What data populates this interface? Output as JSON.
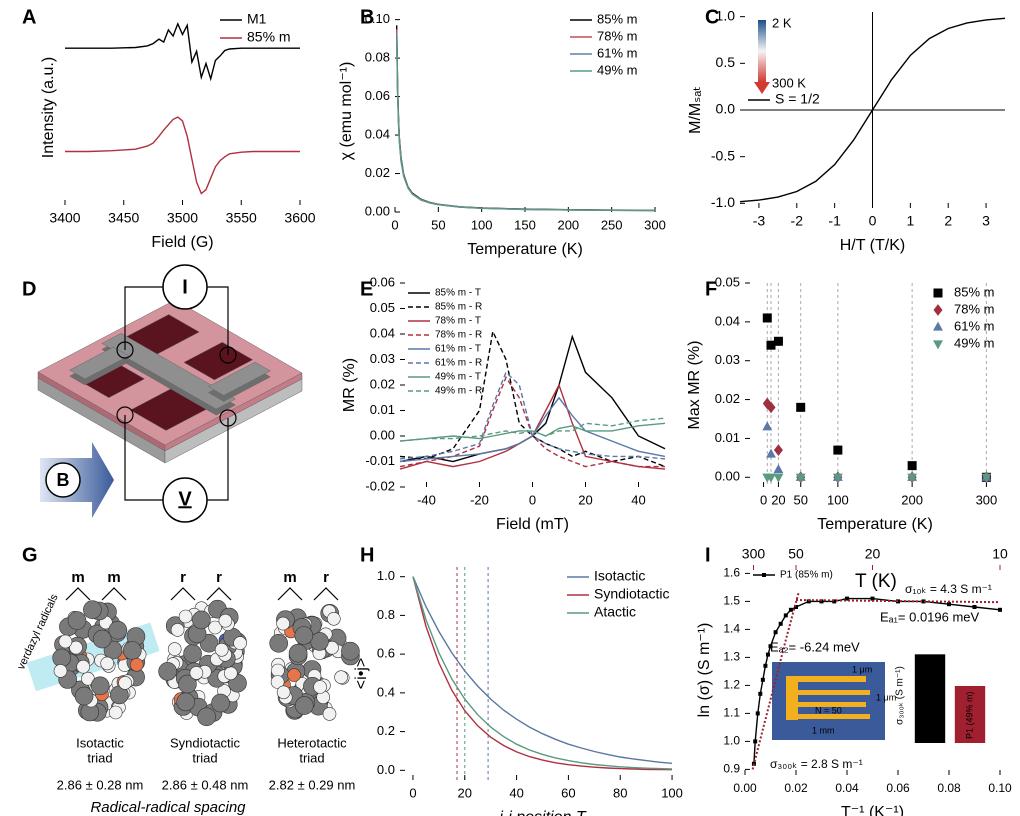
{
  "chart_data": [
    {
      "panel": "A",
      "type": "line",
      "xlabel": "Field (G)",
      "ylabel": "Intensity (a.u.)",
      "x": [
        3400,
        3420,
        3440,
        3460,
        3470,
        3475,
        3480,
        3484,
        3488,
        3492,
        3496,
        3500,
        3504,
        3508,
        3512,
        3516,
        3520,
        3524,
        3528,
        3532,
        3536,
        3540,
        3550,
        3560,
        3580,
        3600
      ],
      "series": [
        {
          "name": "M1",
          "color": "#000000",
          "values": [
            0.6,
            0.6,
            0.6,
            0.61,
            0.63,
            0.66,
            0.72,
            0.68,
            0.84,
            0.76,
            0.92,
            0.78,
            0.9,
            0.42,
            0.56,
            0.22,
            0.4,
            0.2,
            0.44,
            0.5,
            0.57,
            0.59,
            0.6,
            0.6,
            0.6,
            0.6
          ]
        },
        {
          "name": "85% m",
          "color": "#b03040",
          "values": [
            -0.75,
            -0.75,
            -0.74,
            -0.72,
            -0.68,
            -0.64,
            -0.55,
            -0.47,
            -0.4,
            -0.33,
            -0.3,
            -0.35,
            -0.55,
            -0.85,
            -1.15,
            -1.3,
            -1.25,
            -1.1,
            -0.95,
            -0.87,
            -0.82,
            -0.78,
            -0.76,
            -0.75,
            -0.75,
            -0.75
          ]
        }
      ],
      "xlim": [
        3400,
        3600
      ],
      "xticks": [
        3400,
        3450,
        3500,
        3550,
        3600
      ],
      "ylim": [
        -1.45,
        1.1
      ],
      "legend": "upper right"
    },
    {
      "panel": "B",
      "type": "line",
      "xlabel": "Temperature (K)",
      "ylabel": "χ (emu mol⁻¹)",
      "x": [
        2,
        3,
        4,
        5,
        7,
        10,
        15,
        20,
        30,
        40,
        50,
        75,
        100,
        150,
        200,
        250,
        300
      ],
      "series": [
        {
          "name": "85% m",
          "color": "#000000",
          "values": [
            0.097,
            0.065,
            0.049,
            0.039,
            0.028,
            0.0195,
            0.013,
            0.0098,
            0.0066,
            0.005,
            0.004,
            0.0027,
            0.0021,
            0.0015,
            0.0012,
            0.001,
            0.0009
          ]
        },
        {
          "name": "78% m",
          "color": "#c0505a",
          "values": [
            0.095,
            0.064,
            0.048,
            0.038,
            0.027,
            0.019,
            0.0127,
            0.0095,
            0.0064,
            0.0049,
            0.0039,
            0.0026,
            0.002,
            0.0014,
            0.0011,
            0.0009,
            0.0008
          ]
        },
        {
          "name": "61% m",
          "color": "#6080a8",
          "values": [
            0.093,
            0.062,
            0.047,
            0.037,
            0.027,
            0.0188,
            0.0126,
            0.0094,
            0.0063,
            0.0048,
            0.0039,
            0.0026,
            0.002,
            0.0014,
            0.0011,
            0.0009,
            0.0008
          ]
        },
        {
          "name": "49% m",
          "color": "#5a9a88",
          "values": [
            0.09,
            0.061,
            0.046,
            0.037,
            0.026,
            0.0185,
            0.0124,
            0.0093,
            0.0062,
            0.0047,
            0.0038,
            0.0025,
            0.0019,
            0.0013,
            0.0011,
            0.0009,
            0.0008
          ]
        }
      ],
      "xlim": [
        0,
        300
      ],
      "xticks": [
        0,
        50,
        100,
        150,
        200,
        250,
        300
      ],
      "ylim": [
        0,
        0.105
      ],
      "yticks": [
        {
          "value": 0,
          "label": "0.00"
        },
        0.02,
        0.04,
        0.06,
        0.08,
        {
          "value": 0.1,
          "label": "0.10"
        }
      ],
      "legend": "upper right"
    },
    {
      "panel": "C",
      "type": "line",
      "xlabel": "H/T (T/K)",
      "ylabel": "M/Mₛₐₜ",
      "x": [
        -3.5,
        -3,
        -2.5,
        -2,
        -1.5,
        -1,
        -0.5,
        0,
        0.5,
        1,
        1.5,
        2,
        2.5,
        3,
        3.5
      ],
      "series": [
        {
          "name": "S = 1/2",
          "color": "#000000",
          "values": [
            -0.982,
            -0.965,
            -0.933,
            -0.873,
            -0.765,
            -0.586,
            -0.323,
            0,
            0.323,
            0.586,
            0.765,
            0.873,
            0.933,
            0.965,
            0.982
          ]
        }
      ],
      "xlim": [
        -3.5,
        3.5
      ],
      "xticks": [
        -3,
        -2,
        -1,
        0,
        1,
        2,
        3
      ],
      "ylim": [
        -1.05,
        1.05
      ],
      "yticks": [
        {
          "value": -1,
          "label": "-1.0"
        },
        -0.5,
        {
          "value": 0,
          "label": "0.0"
        },
        0.5,
        {
          "value": 1,
          "label": "1.0"
        }
      ],
      "zero_lines": true,
      "legend": "upper left",
      "annotations": [
        "2 K",
        "300 K"
      ]
    },
    {
      "panel": "E",
      "type": "line",
      "xlabel": "Field (mT)",
      "ylabel": "MR (%)",
      "x": [
        -50,
        -40,
        -30,
        -20,
        -15,
        -10,
        -5,
        0,
        5,
        10,
        15,
        20,
        30,
        40,
        50
      ],
      "series": [
        {
          "name": "85% m - T",
          "color": "#000000",
          "style": "solid",
          "values": [
            -0.01,
            -0.008,
            -0.01,
            -0.007,
            -0.006,
            -0.005,
            -0.003,
            0,
            0.005,
            0.02,
            0.039,
            0.025,
            0.015,
            0,
            -0.005
          ]
        },
        {
          "name": "85% m - R",
          "color": "#000000",
          "style": "dashed",
          "values": [
            -0.008,
            -0.009,
            -0.005,
            0.01,
            0.041,
            0.03,
            0.005,
            0,
            -0.003,
            -0.005,
            -0.008,
            -0.006,
            -0.01,
            -0.008,
            -0.012
          ]
        },
        {
          "name": "78% m - T",
          "color": "#b03040",
          "style": "solid",
          "values": [
            -0.013,
            -0.01,
            -0.012,
            -0.01,
            -0.008,
            -0.006,
            -0.003,
            0,
            0.01,
            0.02,
            0.005,
            -0.008,
            -0.01,
            -0.012,
            -0.013
          ]
        },
        {
          "name": "78% m - R",
          "color": "#b03040",
          "style": "dashed",
          "values": [
            -0.012,
            -0.01,
            -0.008,
            -0.004,
            0.01,
            0.023,
            0.015,
            0,
            -0.005,
            -0.008,
            -0.01,
            -0.012,
            -0.01,
            -0.012,
            -0.012
          ]
        },
        {
          "name": "61% m - T",
          "color": "#5a78a8",
          "style": "solid",
          "values": [
            -0.01,
            -0.009,
            -0.008,
            -0.007,
            -0.006,
            -0.005,
            -0.003,
            0,
            0.008,
            0.015,
            0.008,
            0.002,
            -0.002,
            -0.006,
            -0.008
          ]
        },
        {
          "name": "61% m - R",
          "color": "#5a78a8",
          "style": "dashed",
          "values": [
            -0.009,
            -0.008,
            -0.006,
            -0.003,
            0.012,
            0.025,
            0.02,
            0,
            -0.003,
            -0.005,
            -0.006,
            -0.007,
            -0.008,
            -0.008,
            -0.009
          ]
        },
        {
          "name": "49% m - T",
          "color": "#5a9a80",
          "style": "solid",
          "values": [
            -0.002,
            -0.001,
            0,
            -0.001,
            0,
            0.001,
            0.002,
            0.002,
            0,
            0.003,
            0.004,
            0.002,
            0.002,
            0.004,
            0.005
          ]
        },
        {
          "name": "49% m - R",
          "color": "#5a9a80",
          "style": "dashed",
          "values": [
            -0.002,
            -0.001,
            -0.001,
            0,
            0.001,
            0.002,
            0.001,
            0.002,
            0,
            0.002,
            0.002,
            0.005,
            0.004,
            0.006,
            0.007
          ]
        }
      ],
      "xlim": [
        -50,
        50
      ],
      "xticks": [
        -40,
        -20,
        0,
        20,
        40
      ],
      "ylim": [
        -0.02,
        0.06
      ],
      "yticks": [
        -0.02,
        -0.01,
        {
          "value": 0,
          "label": "0.00"
        },
        0.01,
        0.02,
        0.03,
        0.04,
        0.05,
        0.06
      ],
      "legend": "upper left"
    },
    {
      "panel": "F",
      "type": "scatter",
      "xlabel": "Temperature (K)",
      "ylabel": "Max MR (%)",
      "x": [
        5,
        10,
        20,
        50,
        100,
        200,
        300
      ],
      "series": [
        {
          "name": "85% m",
          "color": "#000000",
          "marker": "square",
          "values": [
            0.041,
            0.034,
            0.035,
            0.018,
            0.007,
            0.003,
            0
          ]
        },
        {
          "name": "78% m",
          "color": "#a03040",
          "marker": "diamond",
          "values": [
            0.019,
            0.018,
            0.007,
            0,
            0,
            0,
            0
          ]
        },
        {
          "name": "61% m",
          "color": "#5a78a8",
          "marker": "triangle",
          "values": [
            0.013,
            0.006,
            0.002,
            0,
            0,
            0,
            0
          ]
        },
        {
          "name": "49% m",
          "color": "#5a9a80",
          "marker": "triangle-down",
          "values": [
            0,
            0,
            0,
            0,
            0,
            0,
            0
          ]
        }
      ],
      "guides": [
        5,
        10,
        20,
        50,
        100,
        200,
        300
      ],
      "xlim": [
        -25,
        325
      ],
      "xticks": [
        0,
        20,
        50,
        100,
        200,
        300
      ],
      "ylim": [
        -0.0025,
        0.05
      ],
      "yticks": [
        {
          "value": 0,
          "label": "0.00"
        },
        0.01,
        0.02,
        0.03,
        0.04,
        0.05
      ],
      "legend": "upper right"
    },
    {
      "panel": "H",
      "type": "line",
      "xlabel": "i-j position T",
      "ylabel": "<i•j>",
      "x": [
        0,
        5,
        10,
        15,
        20,
        25,
        30,
        35,
        40,
        45,
        50,
        55,
        60,
        65,
        70,
        75,
        80,
        85,
        90,
        95,
        100
      ],
      "series": [
        {
          "name": "Isotactic",
          "color": "#5a78a0",
          "values": [
            1,
            0.846,
            0.717,
            0.607,
            0.513,
            0.435,
            0.368,
            0.311,
            0.264,
            0.223,
            0.189,
            0.16,
            0.135,
            0.115,
            0.097,
            0.082,
            0.069,
            0.059,
            0.05,
            0.042,
            0.036
          ]
        },
        {
          "name": "Syndiotactic",
          "color": "#b03040",
          "values": [
            1,
            0.745,
            0.555,
            0.414,
            0.308,
            0.23,
            0.171,
            0.128,
            0.095,
            0.071,
            0.053,
            0.039,
            0.029,
            0.022,
            0.016,
            0.012,
            0.009,
            0.007,
            0.005,
            0.004,
            0.003
          ]
        },
        {
          "name": "Atactic",
          "color": "#5a9a80",
          "values": [
            1,
            0.779,
            0.607,
            0.472,
            0.368,
            0.287,
            0.223,
            0.174,
            0.135,
            0.105,
            0.082,
            0.064,
            0.05,
            0.039,
            0.03,
            0.024,
            0.018,
            0.014,
            0.011,
            0.009,
            0.007
          ]
        }
      ],
      "guides": [
        17,
        20,
        29
      ],
      "guide_colors": [
        "#b03040",
        "#5a9a80",
        "#5a78a0"
      ],
      "xlim": [
        -5,
        105
      ],
      "xticks": [
        0,
        20,
        40,
        60,
        80,
        100
      ],
      "ylim": [
        -0.05,
        1.05
      ],
      "yticks": [
        {
          "value": 0,
          "label": "0.0"
        },
        0.2,
        0.4,
        0.6,
        0.8,
        {
          "value": 1,
          "label": "1.0"
        }
      ],
      "legend": "upper right"
    },
    {
      "panel": "I",
      "type": "scatter",
      "xlabel": "T⁻¹ (K⁻¹)",
      "ylabel": "ln (σ) (S m⁻¹)",
      "x": [
        0.0035,
        0.004,
        0.005,
        0.006,
        0.007,
        0.008,
        0.009,
        0.01,
        0.012,
        0.014,
        0.016,
        0.018,
        0.02,
        0.025,
        0.03,
        0.035,
        0.04,
        0.05,
        0.06,
        0.07,
        0.08,
        0.09,
        0.1
      ],
      "series": [
        {
          "name": "P1 (85% m)",
          "color": "#000000",
          "marker": "square",
          "mode": "line+markers",
          "values": [
            0.92,
            1.0,
            1.1,
            1.17,
            1.22,
            1.27,
            1.31,
            1.34,
            1.39,
            1.42,
            1.45,
            1.47,
            1.48,
            1.5,
            1.5,
            1.5,
            1.51,
            1.51,
            1.5,
            1.5,
            1.49,
            1.48,
            1.47
          ]
        },
        {
          "color": "#9a2030",
          "mode": "line",
          "style": "dotted",
          "x": [
            0.003,
            0.0075,
            0.012,
            0.0165,
            0.021
          ],
          "values": [
            0.9,
            1.06,
            1.22,
            1.38,
            1.53
          ]
        },
        {
          "color": "#9a2030",
          "mode": "line",
          "style": "dotted",
          "x": [
            0.02,
            0.1
          ],
          "values": [
            1.505,
            1.497
          ]
        }
      ],
      "xlim": [
        0,
        0.1
      ],
      "xticks": [
        {
          "value": 0,
          "label": "0.00"
        },
        0.02,
        0.04,
        0.06,
        0.08,
        {
          "value": 0.1,
          "label": "0.10"
        }
      ],
      "ylim": [
        0.88,
        1.63
      ],
      "yticks": [
        0.9,
        {
          "value": 1,
          "label": "1.0"
        },
        1.1,
        1.2,
        1.3,
        1.4,
        1.5,
        1.6
      ],
      "x2ticks": [
        {
          "value": 0.00333,
          "label": "300"
        },
        {
          "value": 0.02,
          "label": "50"
        },
        {
          "value": 0.05,
          "label": "20"
        },
        {
          "value": 0.1,
          "label": "10"
        }
      ],
      "x2color": "#9a2030",
      "legend": "upper left",
      "annotations": [
        "T (K)",
        "σ₁₀ₖ = 4.3 S m⁻¹",
        "Eₐ₁= 0.0196 meV",
        "Eₐ₂= -6.24 meV",
        "σ₃₀₀ₖ = 2.8 S m⁻¹",
        "1 μm",
        "1 μm",
        "N = 50",
        "1 mm"
      ]
    },
    {
      "type": "bar",
      "ylabel": "σ₃₀₀ₖ (S m⁻¹)",
      "categories": [
        "P1 (85% m)",
        "P1 (49% m)"
      ],
      "values": [
        2.8,
        1.8
      ],
      "colors": [
        "#000000",
        "#a02030"
      ],
      "ylim": [
        0,
        3
      ]
    }
  ],
  "panel_d": {
    "panel": "D",
    "current": "I",
    "voltage": "V",
    "field": "B"
  },
  "panel_g": {
    "panel": "G",
    "radical_label": "verdazyl radicals",
    "triads": [
      {
        "dyads": [
          "m",
          "m"
        ],
        "label_lines": [
          "Isotactic",
          "triad"
        ],
        "spacing": "2.86 ± 0.28 nm"
      },
      {
        "dyads": [
          "r",
          "r"
        ],
        "label_lines": [
          "Syndiotactic",
          "triad"
        ],
        "spacing": "2.86 ± 0.48 nm"
      },
      {
        "dyads": [
          "m",
          "r"
        ],
        "label_lines": [
          "Heterotactic",
          "triad"
        ],
        "spacing": "2.82 ± 0.29 nm"
      }
    ],
    "caption": "Radical-radical spacing"
  }
}
